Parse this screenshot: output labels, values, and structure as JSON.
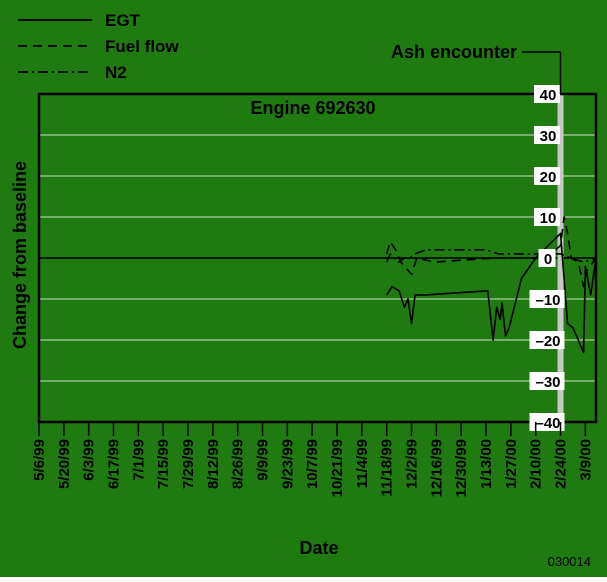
{
  "colors": {
    "background": "#1f7a10",
    "line": "#000000",
    "gridline": "#cfe3c9",
    "ash_band": "#c7c7c7",
    "label_box": "#ffffff"
  },
  "chart_data": {
    "type": "line",
    "title": "Engine 692630",
    "xlabel": "Date",
    "ylabel": "Change from baseline",
    "ylim": [
      -40,
      40
    ],
    "y_ticks": [
      -40,
      -30,
      -20,
      -10,
      0,
      10,
      20,
      30,
      40
    ],
    "y_tick_labels": [
      "–40",
      "–30",
      "–20",
      "–10",
      "0",
      "10",
      "20",
      "30",
      "40"
    ],
    "x_range": [
      "1999-05-06",
      "2000-03-15"
    ],
    "x_ticks": [
      "5/6/99",
      "5/20/99",
      "6/3/99",
      "6/17/99",
      "7/1/99",
      "7/15/99",
      "7/29/99",
      "8/12/99",
      "8/26/99",
      "9/9/99",
      "9/23/99",
      "10/7/99",
      "10/21/99",
      "11/4/99",
      "11/18/99",
      "12/2/99",
      "12/16/99",
      "12/30/99",
      "1/13/00",
      "1/27/00",
      "2/10/00",
      "2/24/00",
      "3/9/00"
    ],
    "grid": true,
    "legend_position": "top-left, outside plot",
    "annotation": {
      "text": "Ash encounter",
      "date": "2000-02-24"
    },
    "figure_id": "030014",
    "series": [
      {
        "name": "EGT",
        "style": "solid",
        "points": [
          [
            "1999-11-18",
            -9
          ],
          [
            "1999-11-21",
            -7
          ],
          [
            "1999-11-25",
            -8
          ],
          [
            "1999-11-28",
            -12
          ],
          [
            "1999-11-30",
            -10
          ],
          [
            "1999-12-02",
            -16
          ],
          [
            "1999-12-04",
            -9
          ],
          [
            "1999-12-10",
            -9
          ],
          [
            "2000-01-14",
            -8
          ],
          [
            "2000-01-17",
            -20
          ],
          [
            "2000-01-19",
            -12
          ],
          [
            "2000-01-21",
            -15
          ],
          [
            "2000-01-22",
            -11
          ],
          [
            "2000-01-24",
            -19
          ],
          [
            "2000-01-26",
            -17
          ],
          [
            "2000-02-02",
            -5
          ],
          [
            "2000-02-10",
            0
          ],
          [
            "2000-02-24",
            6
          ],
          [
            "2000-02-28",
            -16
          ],
          [
            "2000-03-02",
            -17
          ],
          [
            "2000-03-08",
            -23
          ],
          [
            "2000-03-09",
            -2
          ],
          [
            "2000-03-12",
            -9
          ],
          [
            "2000-03-15",
            0
          ]
        ]
      },
      {
        "name": "Fuel flow",
        "style": "dashed",
        "points": [
          [
            "1999-11-18",
            1
          ],
          [
            "1999-11-20",
            4
          ],
          [
            "1999-11-23",
            2
          ],
          [
            "1999-11-26",
            -1
          ],
          [
            "1999-12-02",
            -4
          ],
          [
            "1999-12-05",
            0
          ],
          [
            "1999-12-15",
            -1
          ],
          [
            "2000-01-17",
            0
          ],
          [
            "2000-02-10",
            0
          ],
          [
            "2000-02-18",
            1
          ],
          [
            "2000-02-24",
            3
          ],
          [
            "2000-02-26",
            10
          ],
          [
            "2000-02-28",
            6
          ],
          [
            "2000-03-01",
            0
          ],
          [
            "2000-03-05",
            -1
          ],
          [
            "2000-03-08",
            -7
          ],
          [
            "2000-03-10",
            -3
          ],
          [
            "2000-03-15",
            0
          ]
        ]
      },
      {
        "name": "N2",
        "style": "dash-dot",
        "points": [
          [
            "1999-11-18",
            -1
          ],
          [
            "1999-11-20",
            1
          ],
          [
            "1999-11-22",
            0
          ],
          [
            "1999-11-25",
            -1
          ],
          [
            "1999-11-28",
            0
          ],
          [
            "1999-12-01",
            0
          ],
          [
            "1999-12-04",
            1
          ],
          [
            "1999-12-10",
            2
          ],
          [
            "2000-01-13",
            2
          ],
          [
            "2000-01-20",
            1
          ],
          [
            "2000-02-10",
            1
          ],
          [
            "2000-02-24",
            1
          ],
          [
            "2000-03-01",
            0
          ],
          [
            "2000-03-08",
            -1
          ],
          [
            "2000-03-15",
            0
          ]
        ]
      }
    ]
  }
}
